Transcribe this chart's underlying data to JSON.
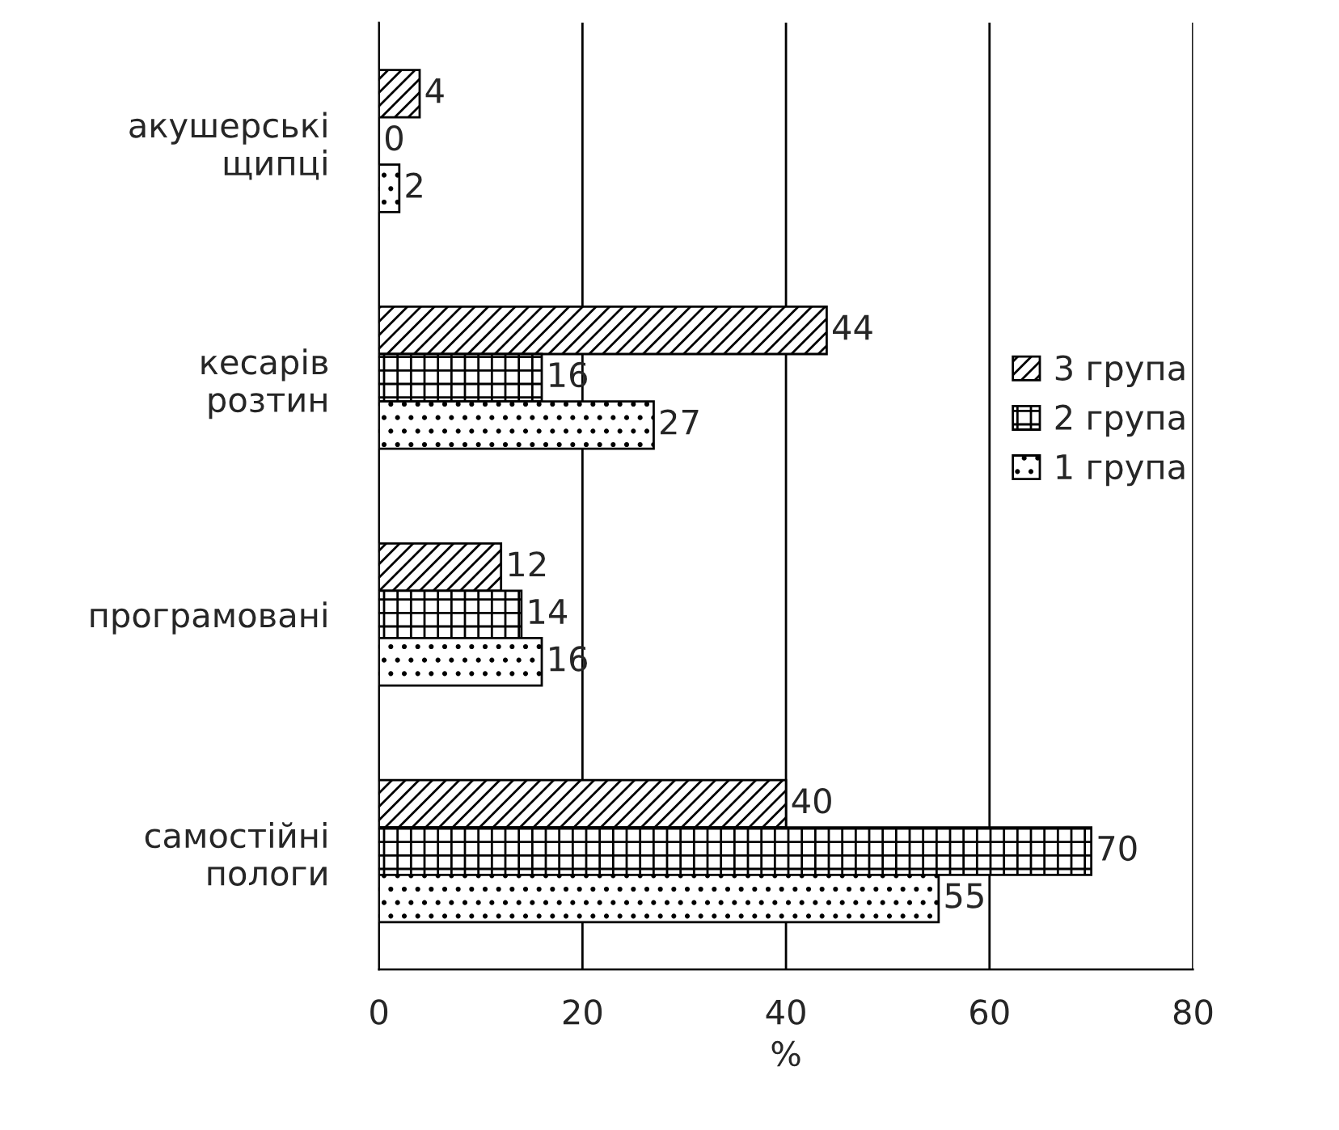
{
  "chart_data": {
    "type": "bar",
    "orientation": "horizontal",
    "xlabel": "%",
    "categories": [
      "акушерські щипці",
      "кесарів розтин",
      "програмовані",
      "самостійні пологи"
    ],
    "series": [
      {
        "name": "3 група",
        "color": "#000000",
        "values": [
          4,
          44,
          12,
          40
        ]
      },
      {
        "name": "2 група",
        "color": "#000000",
        "values": [
          0,
          16,
          14,
          70
        ]
      },
      {
        "name": "1 група",
        "color": "#000000",
        "values": [
          2,
          27,
          16,
          55
        ]
      }
    ],
    "xlim": [
      0,
      80
    ],
    "xticks": [
      0,
      20,
      40,
      60,
      80
    ],
    "grid": "x",
    "legend": "right",
    "data_labels": true
  }
}
